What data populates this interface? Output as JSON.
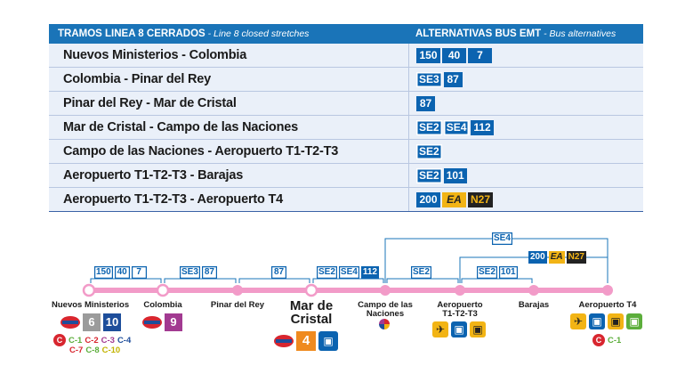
{
  "header": {
    "left_bold": "TRAMOS LINEA 8 CERRADOS",
    "left_italic": " - Line 8 closed stretches",
    "right_bold": "ALTERNATIVAS BUS EMT",
    "right_italic": " - Bus alternatives"
  },
  "rows": [
    {
      "stretch": "Nuevos Ministerios - Colombia",
      "buses": [
        "150",
        "40",
        "7"
      ]
    },
    {
      "stretch": "Colombia - Pinar del Rey",
      "buses": [
        "SE3",
        "87"
      ]
    },
    {
      "stretch": "Pinar del Rey - Mar de Cristal",
      "buses": [
        "87"
      ]
    },
    {
      "stretch": "Mar de Cristal - Campo de las Naciones",
      "buses": [
        "SE2",
        "SE4",
        "112"
      ]
    },
    {
      "stretch": "Campo de las Naciones - Aeropuerto T1-T2-T3",
      "buses": [
        "SE2"
      ]
    },
    {
      "stretch": "Aeropuerto T1-T2-T3 - Barajas",
      "buses": [
        "SE2",
        "101"
      ]
    },
    {
      "stretch": "Aeropuerto T1-T2-T3 - Aeropuerto T4",
      "buses": [
        "200",
        "EA",
        "N27"
      ]
    }
  ],
  "diagram": {
    "stations": [
      {
        "name": "Nuevos Ministerios",
        "metro": [
          "6",
          "10"
        ],
        "cercanias": [
          "C-1",
          "C-2",
          "C-3",
          "C-4",
          "C-7",
          "C-8",
          "C-10"
        ]
      },
      {
        "name": "Colombia",
        "metro": [
          "9"
        ]
      },
      {
        "name": "Pinar del Rey"
      },
      {
        "name": "Mar de",
        "name2": "Cristal",
        "metro": [
          "4"
        ]
      },
      {
        "name": "Campo de las",
        "name2": "Naciones"
      },
      {
        "name": "Aeropuerto",
        "name2": "T1-T2-T3"
      },
      {
        "name": "Barajas"
      },
      {
        "name": "Aeropuerto T4",
        "cercanias": [
          "C-1"
        ]
      }
    ],
    "segments": [
      {
        "buses": [
          "150",
          "40",
          "7"
        ]
      },
      {
        "buses": [
          "SE3",
          "87"
        ]
      },
      {
        "buses": [
          "87"
        ]
      },
      {
        "buses": [
          "SE2",
          "SE4",
          "112"
        ]
      },
      {
        "buses": [
          "SE2"
        ]
      },
      {
        "buses": [
          "SE2",
          "101"
        ]
      }
    ],
    "over": {
      "se4": "SE4",
      "t4": [
        "200",
        "EA",
        "N27"
      ]
    }
  },
  "colors": {
    "header_blue": "#1a74b8",
    "row_bg": "#eaf0f9",
    "line8_pink": "#f29bc8",
    "bus_blue": "#0b63b0",
    "ea_yellow": "#f2b415",
    "night_black": "#222222"
  }
}
